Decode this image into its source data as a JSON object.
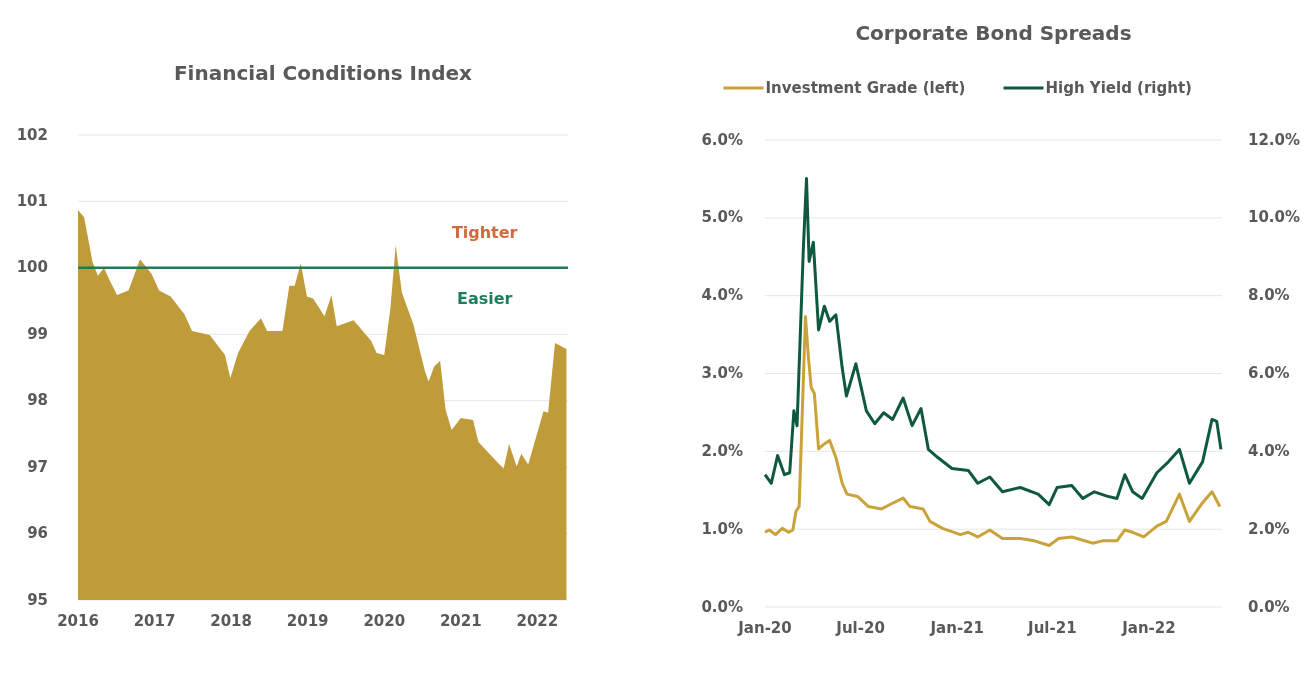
{
  "chart_data": [
    {
      "type": "area",
      "title": "Financial Conditions Index",
      "color": "#bf9b3a",
      "x": [
        2016.0,
        2016.08,
        2016.19,
        2016.26,
        2016.34,
        2016.41,
        2016.51,
        2016.66,
        2016.81,
        2016.96,
        2017.06,
        2017.21,
        2017.39,
        2017.49,
        2017.72,
        2017.92,
        2017.99,
        2018.09,
        2018.24,
        2018.39,
        2018.47,
        2018.67,
        2018.76,
        2018.83,
        2018.91,
        2018.99,
        2019.07,
        2019.22,
        2019.31,
        2019.38,
        2019.6,
        2019.83,
        2019.9,
        2020.0,
        2020.08,
        2020.15,
        2020.23,
        2020.38,
        2020.53,
        2020.58,
        2020.65,
        2020.73,
        2020.8,
        2020.88,
        2021.0,
        2021.16,
        2021.23,
        2021.48,
        2021.56,
        2021.63,
        2021.73,
        2021.79,
        2021.88,
        2022.01,
        2022.08,
        2022.14,
        2022.23,
        2022.38
      ],
      "values": [
        100.87,
        100.76,
        100.09,
        99.88,
        100.0,
        99.82,
        99.59,
        99.66,
        100.13,
        99.91,
        99.66,
        99.57,
        99.3,
        99.05,
        98.99,
        98.69,
        98.34,
        98.72,
        99.05,
        99.24,
        99.05,
        99.05,
        99.73,
        99.73,
        100.07,
        99.57,
        99.54,
        99.27,
        99.59,
        99.12,
        99.21,
        98.9,
        98.72,
        98.69,
        99.39,
        100.34,
        99.63,
        99.15,
        98.45,
        98.29,
        98.51,
        98.6,
        97.87,
        97.56,
        97.74,
        97.71,
        97.38,
        97.07,
        96.98,
        97.35,
        97.01,
        97.2,
        97.04,
        97.56,
        97.84,
        97.82,
        98.87,
        98.78
      ],
      "xlim": [
        2016,
        2022.4
      ],
      "xticks": [
        2016,
        2017,
        2018,
        2019,
        2020,
        2021,
        2022
      ],
      "ylim": [
        95,
        102
      ],
      "yticks": [
        95,
        96,
        97,
        98,
        99,
        100,
        101,
        102
      ],
      "grid": "y",
      "ref_lines": [
        {
          "axis": "y",
          "value": 100,
          "color": "#1e7d5a"
        }
      ],
      "annotations": [
        "Tighter",
        "Easier"
      ]
    },
    {
      "type": "line",
      "title": "Corporate Bond Spreads",
      "legend": "top",
      "grid": "y",
      "series": [
        {
          "name": "Investment Grade (left)",
          "color": "#c9a23a",
          "x": [
            "2020-01-01",
            "2020-01-09",
            "2020-01-21",
            "2020-02-03",
            "2020-02-15",
            "2020-02-23",
            "2020-02-29",
            "2020-03-06",
            "2020-03-18",
            "2020-03-24",
            "2020-03-29",
            "2020-04-04",
            "2020-04-12",
            "2020-04-20",
            "2020-05-03",
            "2020-05-15",
            "2020-05-27",
            "2020-06-05",
            "2020-06-25",
            "2020-07-16",
            "2020-08-10",
            "2020-08-27",
            "2020-09-20",
            "2020-10-03",
            "2020-10-28",
            "2020-11-10",
            "2020-12-04",
            "2021-01-07",
            "2021-01-22",
            "2021-02-09",
            "2021-03-04",
            "2021-03-28",
            "2021-05-01",
            "2021-05-28",
            "2021-06-25",
            "2021-07-13",
            "2021-08-07",
            "2021-09-16",
            "2021-10-04",
            "2021-11-01",
            "2021-11-16",
            "2021-12-01",
            "2021-12-22",
            "2022-01-16",
            "2022-02-03",
            "2022-02-28",
            "2022-03-19",
            "2022-04-13",
            "2022-05-01",
            "2022-05-16"
          ],
          "values": [
            0.96,
            0.99,
            0.93,
            1.01,
            0.96,
            0.99,
            1.23,
            1.29,
            3.73,
            3.18,
            2.82,
            2.74,
            2.03,
            2.08,
            2.14,
            1.92,
            1.59,
            1.45,
            1.42,
            1.29,
            1.26,
            1.32,
            1.4,
            1.29,
            1.26,
            1.1,
            1.01,
            0.93,
            0.96,
            0.9,
            0.99,
            0.88,
            0.88,
            0.85,
            0.79,
            0.88,
            0.9,
            0.82,
            0.85,
            0.85,
            0.99,
            0.96,
            0.9,
            1.04,
            1.1,
            1.45,
            1.1,
            1.34,
            1.48,
            1.29
          ]
        },
        {
          "name": "High Yield (right)",
          "color": "#0f5a3f",
          "axis": "y2",
          "x": [
            "2020-01-01",
            "2020-01-13",
            "2020-01-25",
            "2020-02-07",
            "2020-02-17",
            "2020-02-25",
            "2020-03-02",
            "2020-03-14",
            "2020-03-20",
            "2020-03-25",
            "2020-04-02",
            "2020-04-12",
            "2020-04-23",
            "2020-05-03",
            "2020-05-15",
            "2020-05-27",
            "2020-06-04",
            "2020-06-22",
            "2020-07-12",
            "2020-07-28",
            "2020-08-14",
            "2020-08-31",
            "2020-09-20",
            "2020-10-07",
            "2020-10-24",
            "2020-11-07",
            "2020-11-25",
            "2020-12-22",
            "2021-01-22",
            "2021-02-09",
            "2021-03-04",
            "2021-03-28",
            "2021-05-01",
            "2021-06-04",
            "2021-06-25",
            "2021-07-10",
            "2021-08-07",
            "2021-08-28",
            "2021-09-19",
            "2021-10-13",
            "2021-11-01",
            "2021-11-16",
            "2021-12-01",
            "2021-12-19",
            "2022-01-16",
            "2022-02-07",
            "2022-02-28",
            "2022-03-19",
            "2022-04-13",
            "2022-05-01",
            "2022-05-10",
            "2022-05-18"
          ],
          "values": [
            3.4,
            3.18,
            3.89,
            3.4,
            3.45,
            5.04,
            4.66,
            9.21,
            11.01,
            8.88,
            9.37,
            7.12,
            7.73,
            7.34,
            7.51,
            6.14,
            5.42,
            6.25,
            5.04,
            4.71,
            4.99,
            4.82,
            5.37,
            4.66,
            5.1,
            4.05,
            3.84,
            3.56,
            3.51,
            3.18,
            3.34,
            2.96,
            3.07,
            2.9,
            2.63,
            3.07,
            3.12,
            2.79,
            2.96,
            2.85,
            2.79,
            3.4,
            2.96,
            2.79,
            3.45,
            3.73,
            4.05,
            3.18,
            3.73,
            4.82,
            4.77,
            4.05
          ]
        }
      ],
      "xlim": [
        "2020-01-01",
        "2022-05-20"
      ],
      "xticks": [
        {
          "value": "2020-01-01",
          "label": "Jan-20"
        },
        {
          "value": "2020-07-01",
          "label": "Jul-20"
        },
        {
          "value": "2021-01-01",
          "label": "Jan-21"
        },
        {
          "value": "2021-07-01",
          "label": "Jul-21"
        },
        {
          "value": "2022-01-01",
          "label": "Jan-22"
        }
      ],
      "ylim": [
        0,
        6
      ],
      "yticks": [
        {
          "value": 0,
          "label": "0.0%"
        },
        {
          "value": 1,
          "label": "1.0%"
        },
        {
          "value": 2,
          "label": "2.0%"
        },
        {
          "value": 3,
          "label": "3.0%"
        },
        {
          "value": 4,
          "label": "4.0%"
        },
        {
          "value": 5,
          "label": "5.0%"
        },
        {
          "value": 6,
          "label": "6.0%"
        }
      ],
      "y2lim": [
        0,
        12
      ],
      "y2ticks": [
        {
          "value": 0,
          "label": "0.0%"
        },
        {
          "value": 2,
          "label": "2.0%"
        },
        {
          "value": 4,
          "label": "4.0%"
        },
        {
          "value": 6,
          "label": "6.0%"
        },
        {
          "value": 8,
          "label": "8.0%"
        },
        {
          "value": 10,
          "label": "10.0%"
        },
        {
          "value": 12,
          "label": "12.0%"
        }
      ]
    }
  ]
}
